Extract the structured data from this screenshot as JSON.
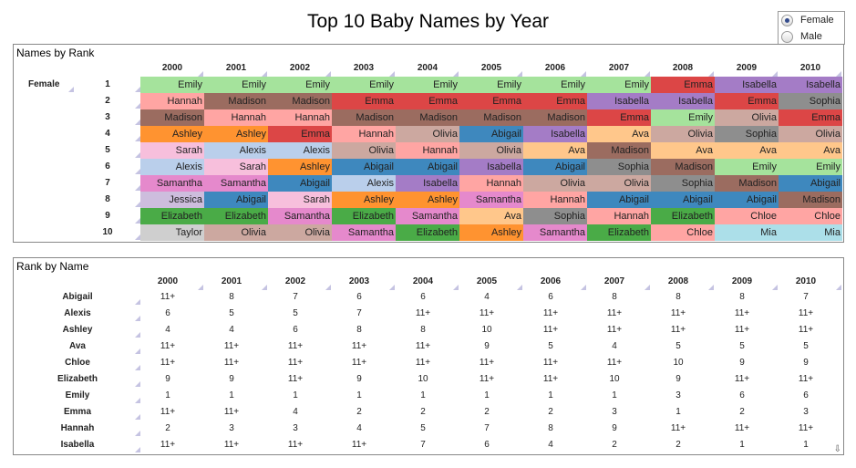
{
  "title": "Top 10 Baby Names by Year",
  "gender_filter": {
    "options": [
      "Female",
      "Male"
    ],
    "selected": "Female"
  },
  "years": [
    "2000",
    "2001",
    "2002",
    "2003",
    "2004",
    "2005",
    "2006",
    "2007",
    "2008",
    "2009",
    "2010"
  ],
  "names_by_rank": {
    "title": "Names by Rank",
    "gender": "Female",
    "ranks": [
      "1",
      "2",
      "3",
      "4",
      "5",
      "6",
      "7",
      "8",
      "9",
      "10"
    ],
    "grid": [
      [
        "Emily",
        "Emily",
        "Emily",
        "Emily",
        "Emily",
        "Emily",
        "Emily",
        "Emily",
        "Emma",
        "Isabella",
        "Isabella"
      ],
      [
        "Hannah",
        "Madison",
        "Madison",
        "Emma",
        "Emma",
        "Emma",
        "Emma",
        "Isabella",
        "Isabella",
        "Emma",
        "Sophia"
      ],
      [
        "Madison",
        "Hannah",
        "Hannah",
        "Madison",
        "Madison",
        "Madison",
        "Madison",
        "Emma",
        "Emily",
        "Olivia",
        "Emma"
      ],
      [
        "Ashley",
        "Ashley",
        "Emma",
        "Hannah",
        "Olivia",
        "Abigail",
        "Isabella",
        "Ava",
        "Olivia",
        "Sophia",
        "Olivia"
      ],
      [
        "Sarah",
        "Alexis",
        "Alexis",
        "Olivia",
        "Hannah",
        "Olivia",
        "Ava",
        "Madison",
        "Ava",
        "Ava",
        "Ava"
      ],
      [
        "Alexis",
        "Sarah",
        "Ashley",
        "Abigail",
        "Abigail",
        "Isabella",
        "Abigail",
        "Sophia",
        "Madison",
        "Emily",
        "Emily"
      ],
      [
        "Samantha",
        "Samantha",
        "Abigail",
        "Alexis",
        "Isabella",
        "Hannah",
        "Olivia",
        "Olivia",
        "Sophia",
        "Madison",
        "Abigail"
      ],
      [
        "Jessica",
        "Abigail",
        "Sarah",
        "Ashley",
        "Ashley",
        "Samantha",
        "Hannah",
        "Abigail",
        "Abigail",
        "Abigail",
        "Madison"
      ],
      [
        "Elizabeth",
        "Elizabeth",
        "Samantha",
        "Elizabeth",
        "Samantha",
        "Ava",
        "Sophia",
        "Hannah",
        "Elizabeth",
        "Chloe",
        "Chloe"
      ],
      [
        "Taylor",
        "Olivia",
        "Olivia",
        "Samantha",
        "Elizabeth",
        "Ashley",
        "Samantha",
        "Elizabeth",
        "Chloe",
        "Mia",
        "Mia"
      ]
    ]
  },
  "name_colors": {
    "Emily": "#a5e39c",
    "Hannah": "#ffa5a3",
    "Madison": "#9b6c60",
    "Emma": "#dc4646",
    "Ashley": "#ff9330",
    "Sarah": "#f7bfdc",
    "Alexis": "#bacfeb",
    "Samantha": "#e589cc",
    "Jessica": "#cdbddd",
    "Elizabeth": "#4aab47",
    "Taylor": "#cfcfcf",
    "Olivia": "#cca8a0",
    "Abigail": "#3e88be",
    "Isabella": "#a47cc6",
    "Ava": "#ffc78b",
    "Sophia": "#8e8e8e",
    "Chloe": "#ffa5a3",
    "Mia": "#acdfe9"
  },
  "rank_by_name": {
    "title": "Rank by Name",
    "rows": [
      {
        "name": "Abigail",
        "ranks": [
          "11+",
          "8",
          "7",
          "6",
          "6",
          "4",
          "6",
          "8",
          "8",
          "8",
          "7"
        ]
      },
      {
        "name": "Alexis",
        "ranks": [
          "6",
          "5",
          "5",
          "7",
          "11+",
          "11+",
          "11+",
          "11+",
          "11+",
          "11+",
          "11+"
        ]
      },
      {
        "name": "Ashley",
        "ranks": [
          "4",
          "4",
          "6",
          "8",
          "8",
          "10",
          "11+",
          "11+",
          "11+",
          "11+",
          "11+"
        ]
      },
      {
        "name": "Ava",
        "ranks": [
          "11+",
          "11+",
          "11+",
          "11+",
          "11+",
          "9",
          "5",
          "4",
          "5",
          "5",
          "5"
        ]
      },
      {
        "name": "Chloe",
        "ranks": [
          "11+",
          "11+",
          "11+",
          "11+",
          "11+",
          "11+",
          "11+",
          "11+",
          "10",
          "9",
          "9"
        ]
      },
      {
        "name": "Elizabeth",
        "ranks": [
          "9",
          "9",
          "11+",
          "9",
          "10",
          "11+",
          "11+",
          "10",
          "9",
          "11+",
          "11+"
        ]
      },
      {
        "name": "Emily",
        "ranks": [
          "1",
          "1",
          "1",
          "1",
          "1",
          "1",
          "1",
          "1",
          "3",
          "6",
          "6"
        ]
      },
      {
        "name": "Emma",
        "ranks": [
          "11+",
          "11+",
          "4",
          "2",
          "2",
          "2",
          "2",
          "3",
          "1",
          "2",
          "3"
        ]
      },
      {
        "name": "Hannah",
        "ranks": [
          "2",
          "3",
          "3",
          "4",
          "5",
          "7",
          "8",
          "9",
          "11+",
          "11+",
          "11+"
        ]
      },
      {
        "name": "Isabella",
        "ranks": [
          "11+",
          "11+",
          "11+",
          "11+",
          "7",
          "6",
          "4",
          "2",
          "2",
          "1",
          "1"
        ]
      }
    ]
  }
}
